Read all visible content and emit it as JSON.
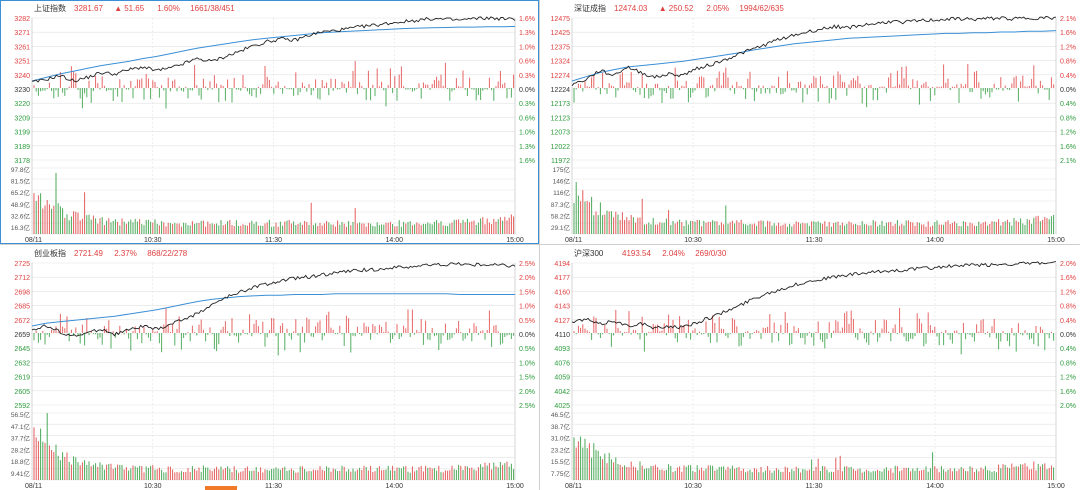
{
  "colors": {
    "up": "#e04040",
    "down": "#2c9b3c",
    "price_line": "#222222",
    "avg_line": "#3a8fd6",
    "grid": "#e2e2e2",
    "selected_border": "#3c8fd6"
  },
  "panels": [
    {
      "id": "shanghai",
      "name": "上证指数",
      "price": "3281.67",
      "arrow": "▲",
      "change": "51.65",
      "pct": "1.60%",
      "breadth": "1661/38/451",
      "selected": true,
      "left_ticks_up": [
        "3282",
        "3271",
        "3261",
        "3251",
        "3240"
      ],
      "left_tick_mid": "3230",
      "left_ticks_down": [
        "3220",
        "3209",
        "3199",
        "3189",
        "3178"
      ],
      "right_ticks_up": [
        "1.6%",
        "1.3%",
        "1.0%",
        "0.6%",
        "0.3%"
      ],
      "right_tick_mid": "0.0%",
      "right_ticks_down": [
        "0.3%",
        "0.6%",
        "1.0%",
        "1.3%",
        "1.6%"
      ],
      "vol_ticks": [
        "97.8亿",
        "81.5亿",
        "65.2亿",
        "48.9亿",
        "32.6亿",
        "16.3亿"
      ],
      "time_ticks": [
        "08/11",
        "10:30",
        "11:30",
        "14:00",
        "15:00"
      ],
      "price_path": [
        0.08,
        0.12,
        0.18,
        0.1,
        0.15,
        0.22,
        0.2,
        0.26,
        0.3,
        0.25,
        0.28,
        0.35,
        0.42,
        0.38,
        0.45,
        0.52,
        0.6,
        0.66,
        0.7,
        0.68,
        0.75,
        0.8,
        0.82,
        0.85,
        0.88,
        0.9,
        0.93,
        0.95,
        0.97,
        0.99,
        0.98,
        0.97,
        0.99,
        1.0,
        0.99,
        0.98
      ],
      "avg_path": [
        0.1,
        0.15,
        0.2,
        0.24,
        0.28,
        0.32,
        0.35,
        0.38,
        0.42,
        0.45,
        0.49,
        0.53,
        0.57,
        0.6,
        0.63,
        0.66,
        0.69,
        0.71,
        0.73,
        0.75,
        0.77,
        0.79,
        0.8,
        0.81,
        0.82,
        0.83,
        0.84,
        0.85,
        0.855,
        0.86,
        0.865,
        0.87,
        0.87,
        0.875,
        0.875,
        0.88
      ]
    },
    {
      "id": "shenzhen",
      "name": "深证成指",
      "price": "12474.03",
      "arrow": "▲",
      "change": "250.52",
      "pct": "2.05%",
      "breadth": "1994/62/635",
      "selected": false,
      "left_ticks_up": [
        "12475",
        "12425",
        "12375",
        "12324",
        "12274"
      ],
      "left_tick_mid": "12224",
      "left_ticks_down": [
        "12173",
        "12123",
        "12073",
        "12022",
        "11972"
      ],
      "right_ticks_up": [
        "2.1%",
        "1.6%",
        "1.2%",
        "0.8%",
        "0.4%"
      ],
      "right_tick_mid": "0.0%",
      "right_ticks_down": [
        "0.4%",
        "0.8%",
        "1.2%",
        "1.6%",
        "2.1%"
      ],
      "vol_ticks": [
        "175亿",
        "146亿",
        "116亿",
        "87.3亿",
        "58.2亿",
        "29.1亿"
      ],
      "time_ticks": [
        "08/11",
        "10:30",
        "11:30",
        "14:00",
        "15:00"
      ],
      "price_path": [
        0.05,
        0.12,
        0.25,
        0.18,
        0.3,
        0.22,
        0.15,
        0.2,
        0.18,
        0.28,
        0.33,
        0.4,
        0.48,
        0.55,
        0.62,
        0.7,
        0.75,
        0.8,
        0.84,
        0.88,
        0.86,
        0.9,
        0.92,
        0.95,
        0.94,
        0.96,
        0.97,
        0.98,
        0.99,
        0.98,
        0.99,
        1.0,
        0.99,
        1.0,
        1.0,
        1.0
      ],
      "avg_path": [
        0.1,
        0.16,
        0.22,
        0.26,
        0.3,
        0.32,
        0.34,
        0.36,
        0.38,
        0.41,
        0.44,
        0.47,
        0.5,
        0.54,
        0.57,
        0.6,
        0.63,
        0.65,
        0.67,
        0.69,
        0.71,
        0.72,
        0.73,
        0.74,
        0.75,
        0.76,
        0.77,
        0.78,
        0.78,
        0.79,
        0.79,
        0.8,
        0.8,
        0.81,
        0.81,
        0.82
      ]
    },
    {
      "id": "chinext",
      "name": "创业板指",
      "price": "2721.49",
      "arrow": "",
      "change": "",
      "pct": "2.37%",
      "breadth": "868/22/278",
      "selected": false,
      "left_ticks_up": [
        "2725",
        "2712",
        "2698",
        "2685",
        "2672"
      ],
      "left_tick_mid": "2659",
      "left_ticks_down": [
        "2645",
        "2632",
        "2619",
        "2605",
        "2592"
      ],
      "right_ticks_up": [
        "2.5%",
        "2.0%",
        "1.5%",
        "1.0%",
        "0.5%"
      ],
      "right_tick_mid": "0.0%",
      "right_ticks_down": [
        "0.5%",
        "1.0%",
        "1.5%",
        "2.0%",
        "2.5%"
      ],
      "vol_ticks": [
        "56.5亿",
        "47.1亿",
        "37.7亿",
        "28.2亿",
        "18.8亿",
        "9.41亿"
      ],
      "time_ticks": [
        "08/11",
        "10:30",
        "11:30",
        "14:00",
        "15:00"
      ],
      "price_path": [
        0.05,
        0.1,
        0.02,
        -0.05,
        0.0,
        0.06,
        -0.02,
        0.04,
        0.1,
        0.05,
        0.12,
        0.2,
        0.28,
        0.4,
        0.5,
        0.58,
        0.65,
        0.7,
        0.74,
        0.78,
        0.8,
        0.83,
        0.86,
        0.88,
        0.9,
        0.91,
        0.93,
        0.94,
        0.96,
        0.97,
        0.98,
        0.99,
        0.97,
        0.98,
        0.97,
        0.96
      ],
      "avg_path": [
        0.1,
        0.14,
        0.16,
        0.18,
        0.2,
        0.22,
        0.24,
        0.27,
        0.3,
        0.33,
        0.37,
        0.41,
        0.45,
        0.48,
        0.5,
        0.52,
        0.53,
        0.54,
        0.54,
        0.55,
        0.55,
        0.55,
        0.56,
        0.56,
        0.56,
        0.56,
        0.56,
        0.56,
        0.56,
        0.56,
        0.56,
        0.55,
        0.55,
        0.55,
        0.55,
        0.55
      ]
    },
    {
      "id": "csi300",
      "name": "沪深300",
      "price": "4193.54",
      "arrow": "",
      "change": "",
      "pct": "2.04%",
      "breadth": "269/0/30",
      "selected": false,
      "left_ticks_up": [
        "4194",
        "4177",
        "4160",
        "4143",
        "4127"
      ],
      "left_tick_mid": "4110",
      "left_ticks_down": [
        "4093",
        "4076",
        "4059",
        "4042",
        "4025"
      ],
      "right_ticks_up": [
        "2.0%",
        "1.6%",
        "1.2%",
        "0.8%",
        "0.4%"
      ],
      "right_tick_mid": "0.0%",
      "right_ticks_down": [
        "0.4%",
        "0.8%",
        "1.2%",
        "1.6%",
        "2.0%"
      ],
      "vol_ticks": [
        "46.5亿",
        "38.7亿",
        "31.0亿",
        "23.2亿",
        "15.5亿",
        "7.75亿"
      ],
      "time_ticks": [
        "08/11",
        "10:30",
        "11:30",
        "14:00",
        "15:00"
      ],
      "price_path": [
        0.15,
        0.2,
        0.12,
        0.18,
        0.1,
        0.14,
        0.06,
        0.1,
        0.08,
        0.15,
        0.22,
        0.3,
        0.38,
        0.48,
        0.56,
        0.62,
        0.68,
        0.73,
        0.77,
        0.8,
        0.83,
        0.85,
        0.87,
        0.89,
        0.9,
        0.92,
        0.93,
        0.95,
        0.96,
        0.97,
        0.97,
        0.98,
        0.99,
        0.99,
        1.0,
        1.0
      ],
      "avg_path": []
    }
  ]
}
